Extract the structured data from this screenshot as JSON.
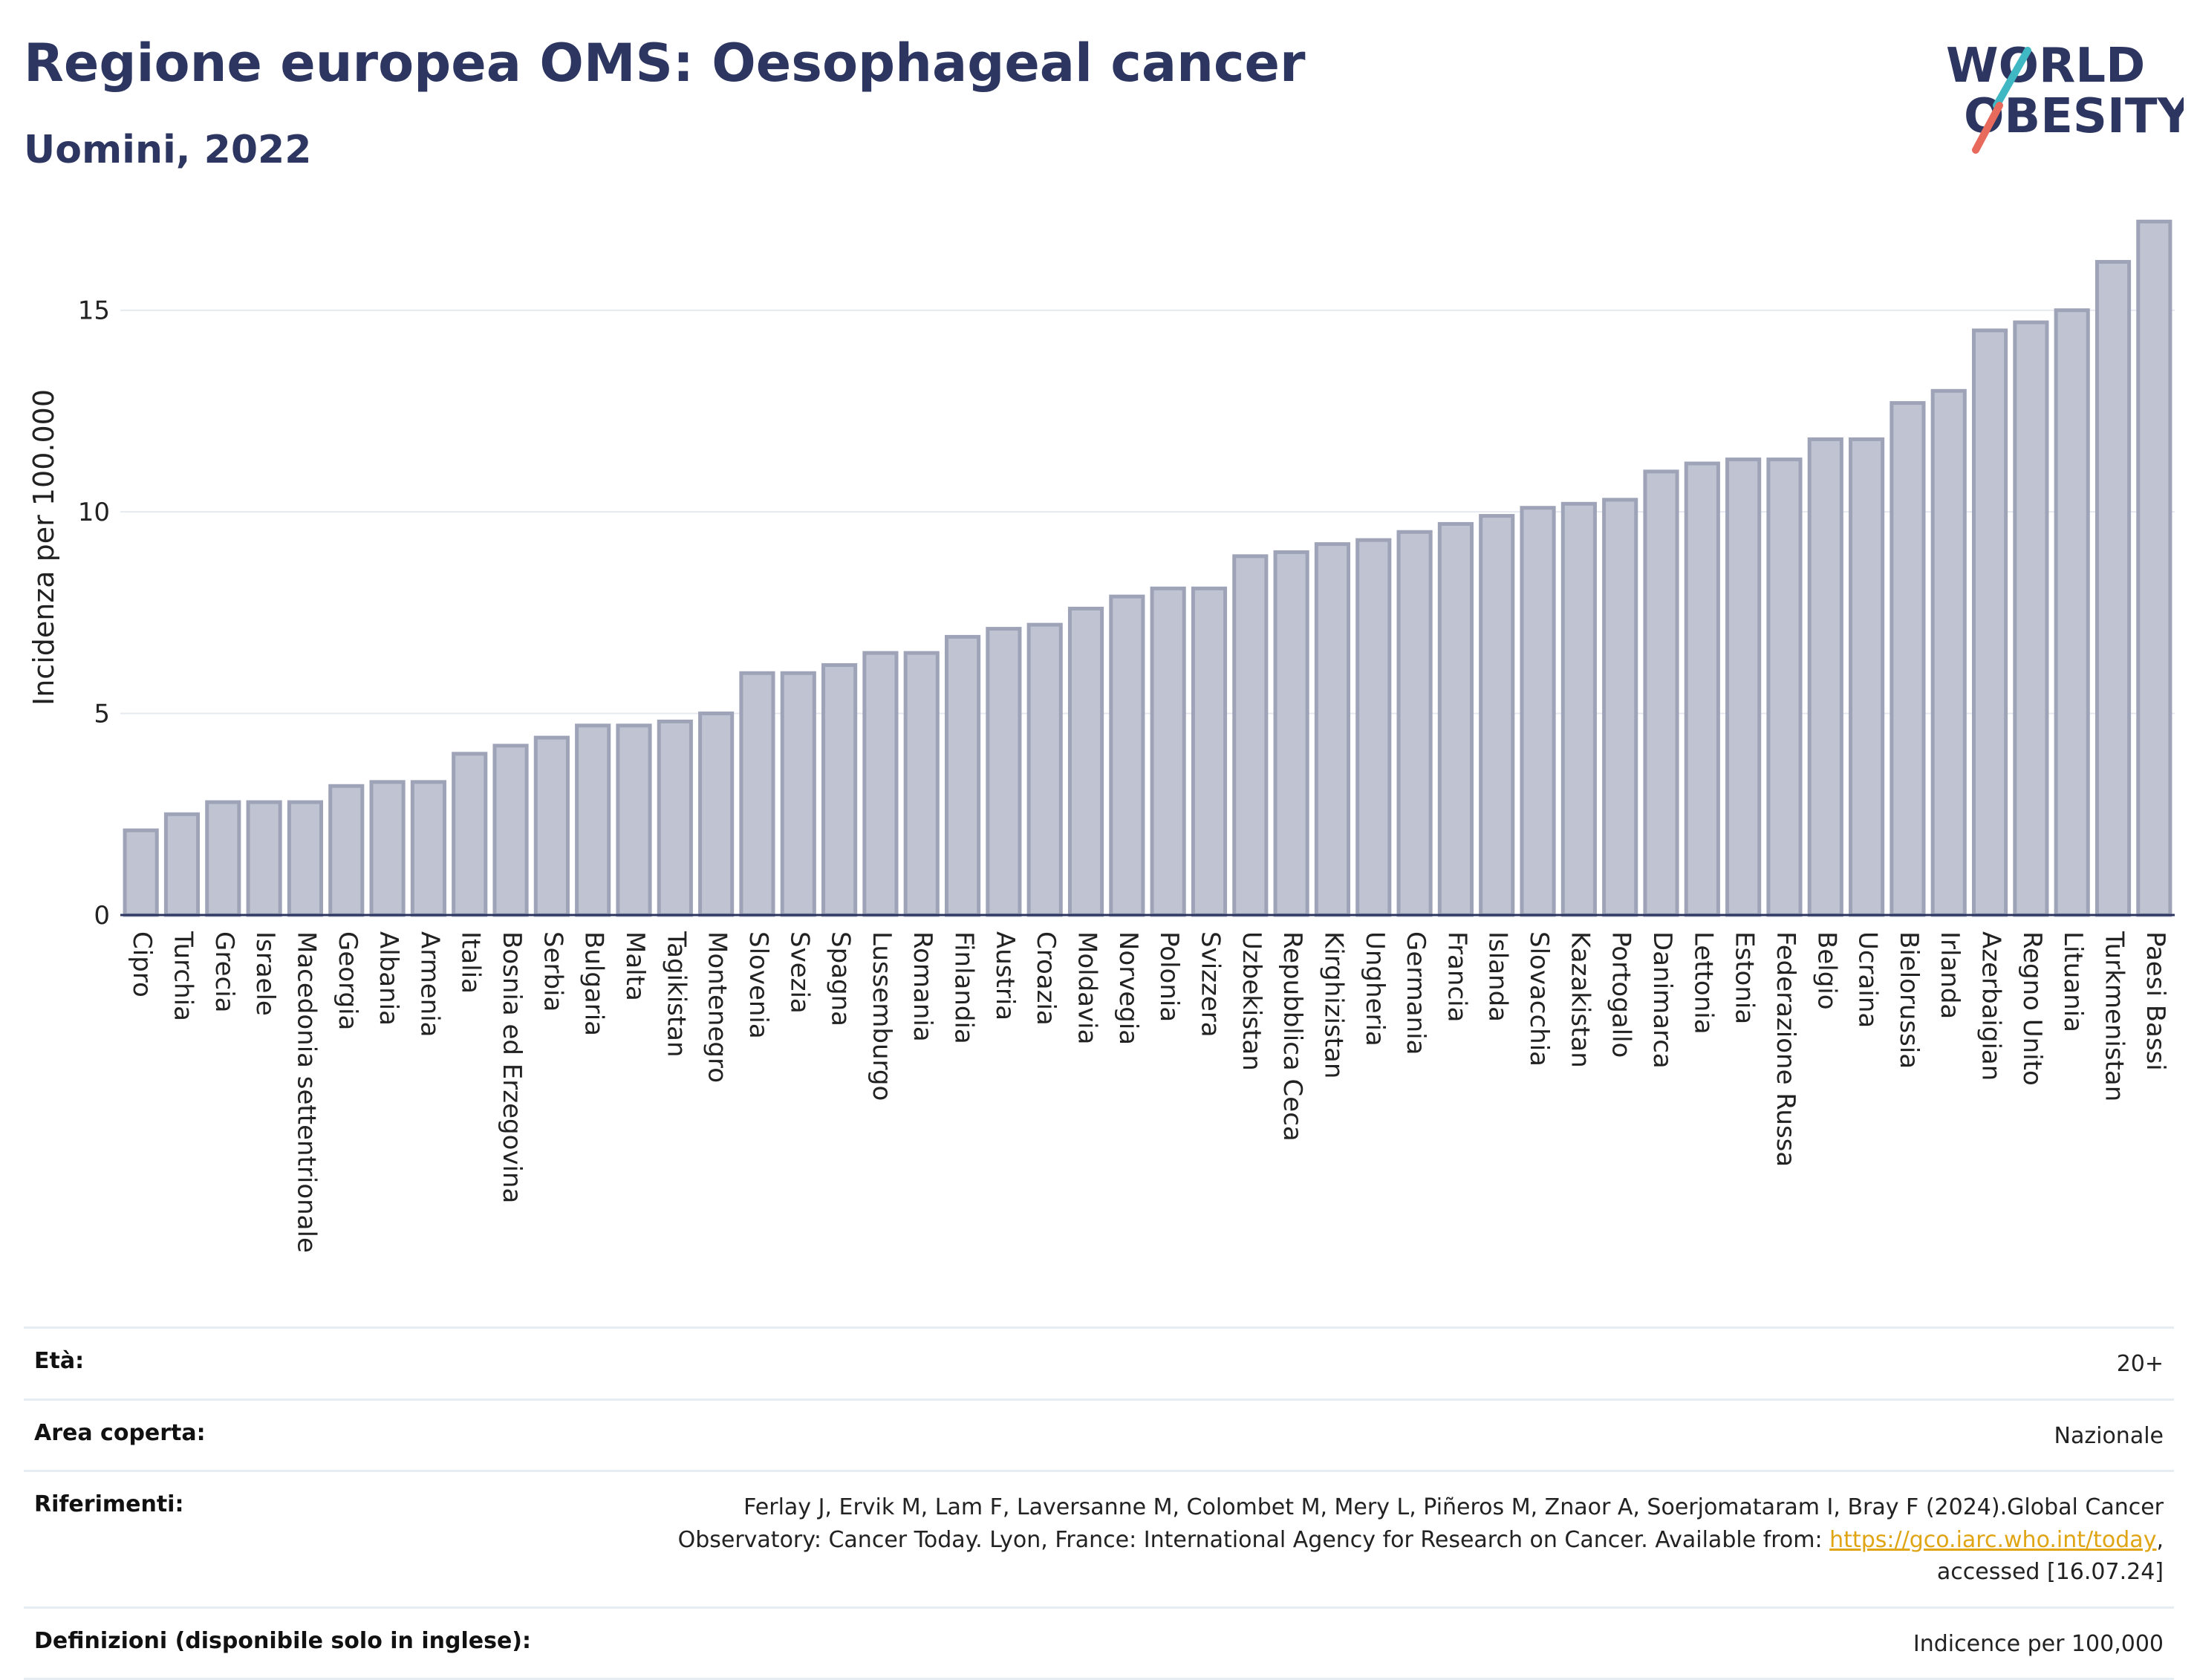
{
  "header": {
    "title": "Regione europea OMS: Oesophageal cancer",
    "subtitle": "Uomini, 2022"
  },
  "logo": {
    "line1": "WORLD",
    "line2": "OBESITY",
    "slash_color_top": "#3fb8c4",
    "slash_color_bottom": "#e76a5c",
    "text_color": "#2d3660"
  },
  "chart_data": {
    "type": "bar",
    "ylabel": "Incidenza per 100.000",
    "xlabel": "",
    "ylim": [
      0,
      17.5
    ],
    "yticks": [
      0,
      5,
      10,
      15
    ],
    "grid": true,
    "bar_fill": "#bfc3d2",
    "bar_stroke": "#9ea3b8",
    "axis_color": "#2d3660",
    "categories": [
      "Cipro",
      "Turchia",
      "Grecia",
      "Israele",
      "Macedonia settentrionale",
      "Georgia",
      "Albania",
      "Armenia",
      "Italia",
      "Bosnia ed Erzegovina",
      "Serbia",
      "Bulgaria",
      "Malta",
      "Tagikistan",
      "Montenegro",
      "Slovenia",
      "Svezia",
      "Spagna",
      "Lussemburgo",
      "Romania",
      "Finlandia",
      "Austria",
      "Croazia",
      "Moldavia",
      "Norvegia",
      "Polonia",
      "Svizzera",
      "Uzbekistan",
      "Repubblica Ceca",
      "Kirghizistan",
      "Ungheria",
      "Germania",
      "Francia",
      "Islanda",
      "Slovacchia",
      "Kazakistan",
      "Portogallo",
      "Danimarca",
      "Lettonia",
      "Estonia",
      "Federazione Russa",
      "Belgio",
      "Ucraina",
      "Bielorussia",
      "Irlanda",
      "Azerbaigian",
      "Regno Unito",
      "Lituania",
      "Turkmenistan",
      "Paesi Bassi"
    ],
    "values": [
      2.1,
      2.5,
      2.8,
      2.8,
      2.8,
      3.2,
      3.3,
      3.3,
      4.0,
      4.2,
      4.4,
      4.7,
      4.7,
      4.8,
      5.0,
      6.0,
      6.0,
      6.2,
      6.5,
      6.5,
      6.9,
      7.1,
      7.2,
      7.6,
      7.9,
      8.1,
      8.1,
      8.9,
      9.0,
      9.2,
      9.3,
      9.5,
      9.7,
      9.9,
      10.1,
      10.2,
      10.3,
      11.0,
      11.2,
      11.3,
      11.3,
      11.8,
      11.8,
      12.7,
      13.0,
      14.5,
      14.7,
      15.0,
      16.2,
      17.2
    ]
  },
  "footer": {
    "rows": [
      {
        "label": "Età:",
        "value": "20+"
      },
      {
        "label": "Area coperta:",
        "value": "Nazionale"
      },
      {
        "label": "Riferimenti:",
        "value_pre": "Ferlay J, Ervik M, Lam F, Laversanne M, Colombet M, Mery L, Piñeros M, Znaor A, Soerjomataram I, Bray F (2024).Global Cancer Observatory: Cancer Today. Lyon, France: International Agency for Research on Cancer. Available from: ",
        "link": "https://gco.iarc.who.int/today",
        "value_post": ", accessed [16.07.24]"
      },
      {
        "label": "Definizioni (disponibile solo in inglese):",
        "value": "Indicence per 100,000"
      }
    ]
  }
}
